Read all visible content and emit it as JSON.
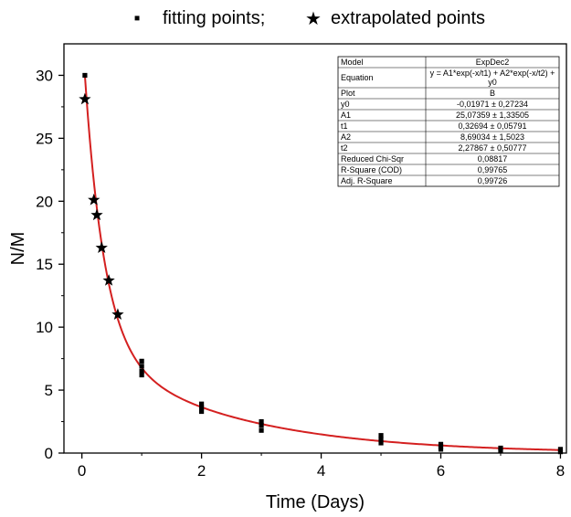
{
  "chart_data": {
    "type": "scatter",
    "xlabel": "Time (Days)",
    "ylabel": "N/M",
    "xlim": [
      -0.3,
      8.1
    ],
    "ylim": [
      0,
      32.5
    ],
    "x_ticks": [
      0,
      2,
      4,
      6,
      8
    ],
    "x_tick_labels": [
      "0",
      "2",
      "4",
      "6",
      "8"
    ],
    "y_ticks": [
      0,
      5,
      10,
      15,
      20,
      25,
      30
    ],
    "y_tick_labels": [
      "0",
      "5",
      "10",
      "15",
      "20",
      "25",
      "30"
    ],
    "grid": false,
    "legend_position": "top",
    "legend": [
      {
        "symbol": "▪",
        "label": "fitting points;"
      },
      {
        "symbol": "★",
        "label": "extrapolated points"
      }
    ],
    "series": [
      {
        "name": "fitting points;",
        "marker": "square",
        "color": "#000000",
        "points": [
          [
            0.05,
            30.0
          ],
          [
            1,
            7.3
          ],
          [
            1,
            6.9
          ],
          [
            1,
            6.5
          ],
          [
            1,
            6.2
          ],
          [
            2,
            3.9
          ],
          [
            2,
            3.6
          ],
          [
            2,
            3.3
          ],
          [
            3,
            2.5
          ],
          [
            3,
            2.2
          ],
          [
            3,
            1.8
          ],
          [
            5,
            1.4
          ],
          [
            5,
            1.1
          ],
          [
            5,
            0.8
          ],
          [
            6,
            0.7
          ],
          [
            6,
            0.5
          ],
          [
            6,
            0.3
          ],
          [
            7,
            0.4
          ],
          [
            7,
            0.2
          ],
          [
            8,
            0.3
          ],
          [
            8,
            0.1
          ]
        ]
      },
      {
        "name": "extrapolated points",
        "marker": "star",
        "color": "#000000",
        "points": [
          [
            0.05,
            28.1
          ],
          [
            0.2,
            20.1
          ],
          [
            0.25,
            18.9
          ],
          [
            0.33,
            16.3
          ],
          [
            0.45,
            13.7
          ],
          [
            0.6,
            11.0
          ]
        ]
      }
    ],
    "fit_curve": {
      "color": "#d42020",
      "model": "ExpDec2",
      "y0": -0.01971,
      "A1": 25.07359,
      "t1": 0.32694,
      "A2": 8.69034,
      "t2": 2.27867,
      "x_range": [
        0.05,
        8
      ]
    },
    "stats_table": [
      [
        "Model",
        "ExpDec2"
      ],
      [
        "Equation",
        "y = A1*exp(-x/t1) + A2*exp(-x/t2) + y0"
      ],
      [
        "Plot",
        "B"
      ],
      [
        "y0",
        "-0,01971 ± 0,27234"
      ],
      [
        "A1",
        "25,07359 ± 1,33505"
      ],
      [
        "t1",
        "0,32694 ± 0,05791"
      ],
      [
        "A2",
        "8,69034 ± 1,5023"
      ],
      [
        "t2",
        "2,27867 ± 0,50777"
      ],
      [
        "Reduced Chi-Sqr",
        "0,08817"
      ],
      [
        "R-Square (COD)",
        "0,99765"
      ],
      [
        "Adj. R-Square",
        "0,99726"
      ]
    ]
  }
}
